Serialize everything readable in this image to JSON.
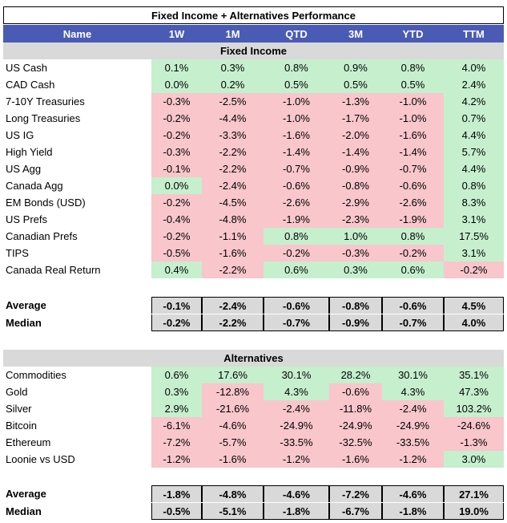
{
  "title": "Fixed Income + Alternatives Performance",
  "columns": [
    "Name",
    "1W",
    "1M",
    "QTD",
    "3M",
    "YTD",
    "TTM"
  ],
  "fixed_income": {
    "section_label": "Fixed Income",
    "rows": [
      {
        "name": "US Cash",
        "values": [
          "0.1%",
          "0.3%",
          "0.8%",
          "0.9%",
          "0.8%",
          "4.0%"
        ]
      },
      {
        "name": "CAD Cash",
        "values": [
          "0.0%",
          "0.2%",
          "0.5%",
          "0.5%",
          "0.5%",
          "2.4%"
        ]
      },
      {
        "name": "7-10Y Treasuries",
        "values": [
          "-0.3%",
          "-2.5%",
          "-1.0%",
          "-1.3%",
          "-1.0%",
          "4.2%"
        ]
      },
      {
        "name": "Long Treasuries",
        "values": [
          "-0.2%",
          "-4.4%",
          "-1.0%",
          "-1.7%",
          "-1.0%",
          "0.7%"
        ]
      },
      {
        "name": "US IG",
        "values": [
          "-0.2%",
          "-3.3%",
          "-1.6%",
          "-2.0%",
          "-1.6%",
          "4.4%"
        ]
      },
      {
        "name": "High Yield",
        "values": [
          "-0.3%",
          "-2.2%",
          "-1.4%",
          "-1.4%",
          "-1.4%",
          "5.7%"
        ]
      },
      {
        "name": "US Agg",
        "values": [
          "-0.1%",
          "-2.2%",
          "-0.7%",
          "-0.9%",
          "-0.7%",
          "4.4%"
        ]
      },
      {
        "name": "Canada Agg",
        "values": [
          "0.0%",
          "-2.4%",
          "-0.6%",
          "-0.8%",
          "-0.6%",
          "0.8%"
        ]
      },
      {
        "name": "EM Bonds (USD)",
        "values": [
          "-0.2%",
          "-4.5%",
          "-2.6%",
          "-2.9%",
          "-2.6%",
          "8.3%"
        ]
      },
      {
        "name": "US Prefs",
        "values": [
          "-0.4%",
          "-4.8%",
          "-1.9%",
          "-2.3%",
          "-1.9%",
          "3.1%"
        ]
      },
      {
        "name": "Canadian Prefs",
        "values": [
          "-0.2%",
          "-1.1%",
          "0.8%",
          "1.0%",
          "0.8%",
          "17.5%"
        ]
      },
      {
        "name": "TIPS",
        "values": [
          "-0.5%",
          "-1.6%",
          "-0.2%",
          "-0.3%",
          "-0.2%",
          "3.1%"
        ]
      },
      {
        "name": "Canada Real Return",
        "values": [
          "0.4%",
          "-2.2%",
          "0.6%",
          "0.3%",
          "0.6%",
          "-0.2%"
        ]
      }
    ],
    "average": {
      "label": "Average",
      "values": [
        "-0.1%",
        "-2.4%",
        "-0.6%",
        "-0.8%",
        "-0.6%",
        "4.5%"
      ]
    },
    "median": {
      "label": "Median",
      "values": [
        "-0.2%",
        "-2.2%",
        "-0.7%",
        "-0.9%",
        "-0.7%",
        "4.0%"
      ]
    }
  },
  "alternatives": {
    "section_label": "Alternatives",
    "rows": [
      {
        "name": "Commodities",
        "values": [
          "0.6%",
          "17.6%",
          "30.1%",
          "28.2%",
          "30.1%",
          "35.1%"
        ]
      },
      {
        "name": "Gold",
        "values": [
          "0.3%",
          "-12.8%",
          "4.3%",
          "-0.6%",
          "4.3%",
          "47.3%"
        ]
      },
      {
        "name": "Silver",
        "values": [
          "2.9%",
          "-21.6%",
          "-2.4%",
          "-11.8%",
          "-2.4%",
          "103.2%"
        ]
      },
      {
        "name": "Bitcoin",
        "values": [
          "-6.1%",
          "-4.6%",
          "-24.9%",
          "-24.9%",
          "-24.9%",
          "-24.6%"
        ]
      },
      {
        "name": "Ethereum",
        "values": [
          "-7.2%",
          "-5.7%",
          "-33.5%",
          "-32.5%",
          "-33.5%",
          "-1.3%"
        ]
      },
      {
        "name": "Loonie vs USD",
        "values": [
          "-1.2%",
          "-1.6%",
          "-1.2%",
          "-1.6%",
          "-1.2%",
          "3.0%"
        ]
      }
    ],
    "average": {
      "label": "Average",
      "values": [
        "-1.8%",
        "-4.8%",
        "-4.6%",
        "-7.2%",
        "-4.6%",
        "27.1%"
      ]
    },
    "median": {
      "label": "Median",
      "values": [
        "-0.5%",
        "-5.1%",
        "-1.8%",
        "-6.7%",
        "-1.8%",
        "19.0%"
      ]
    }
  },
  "colors": {
    "header_bg": "#4a5bb5",
    "positive_bg": "#c6efce",
    "negative_bg": "#f8c6cb",
    "section_bg": "#d9d9d9"
  }
}
